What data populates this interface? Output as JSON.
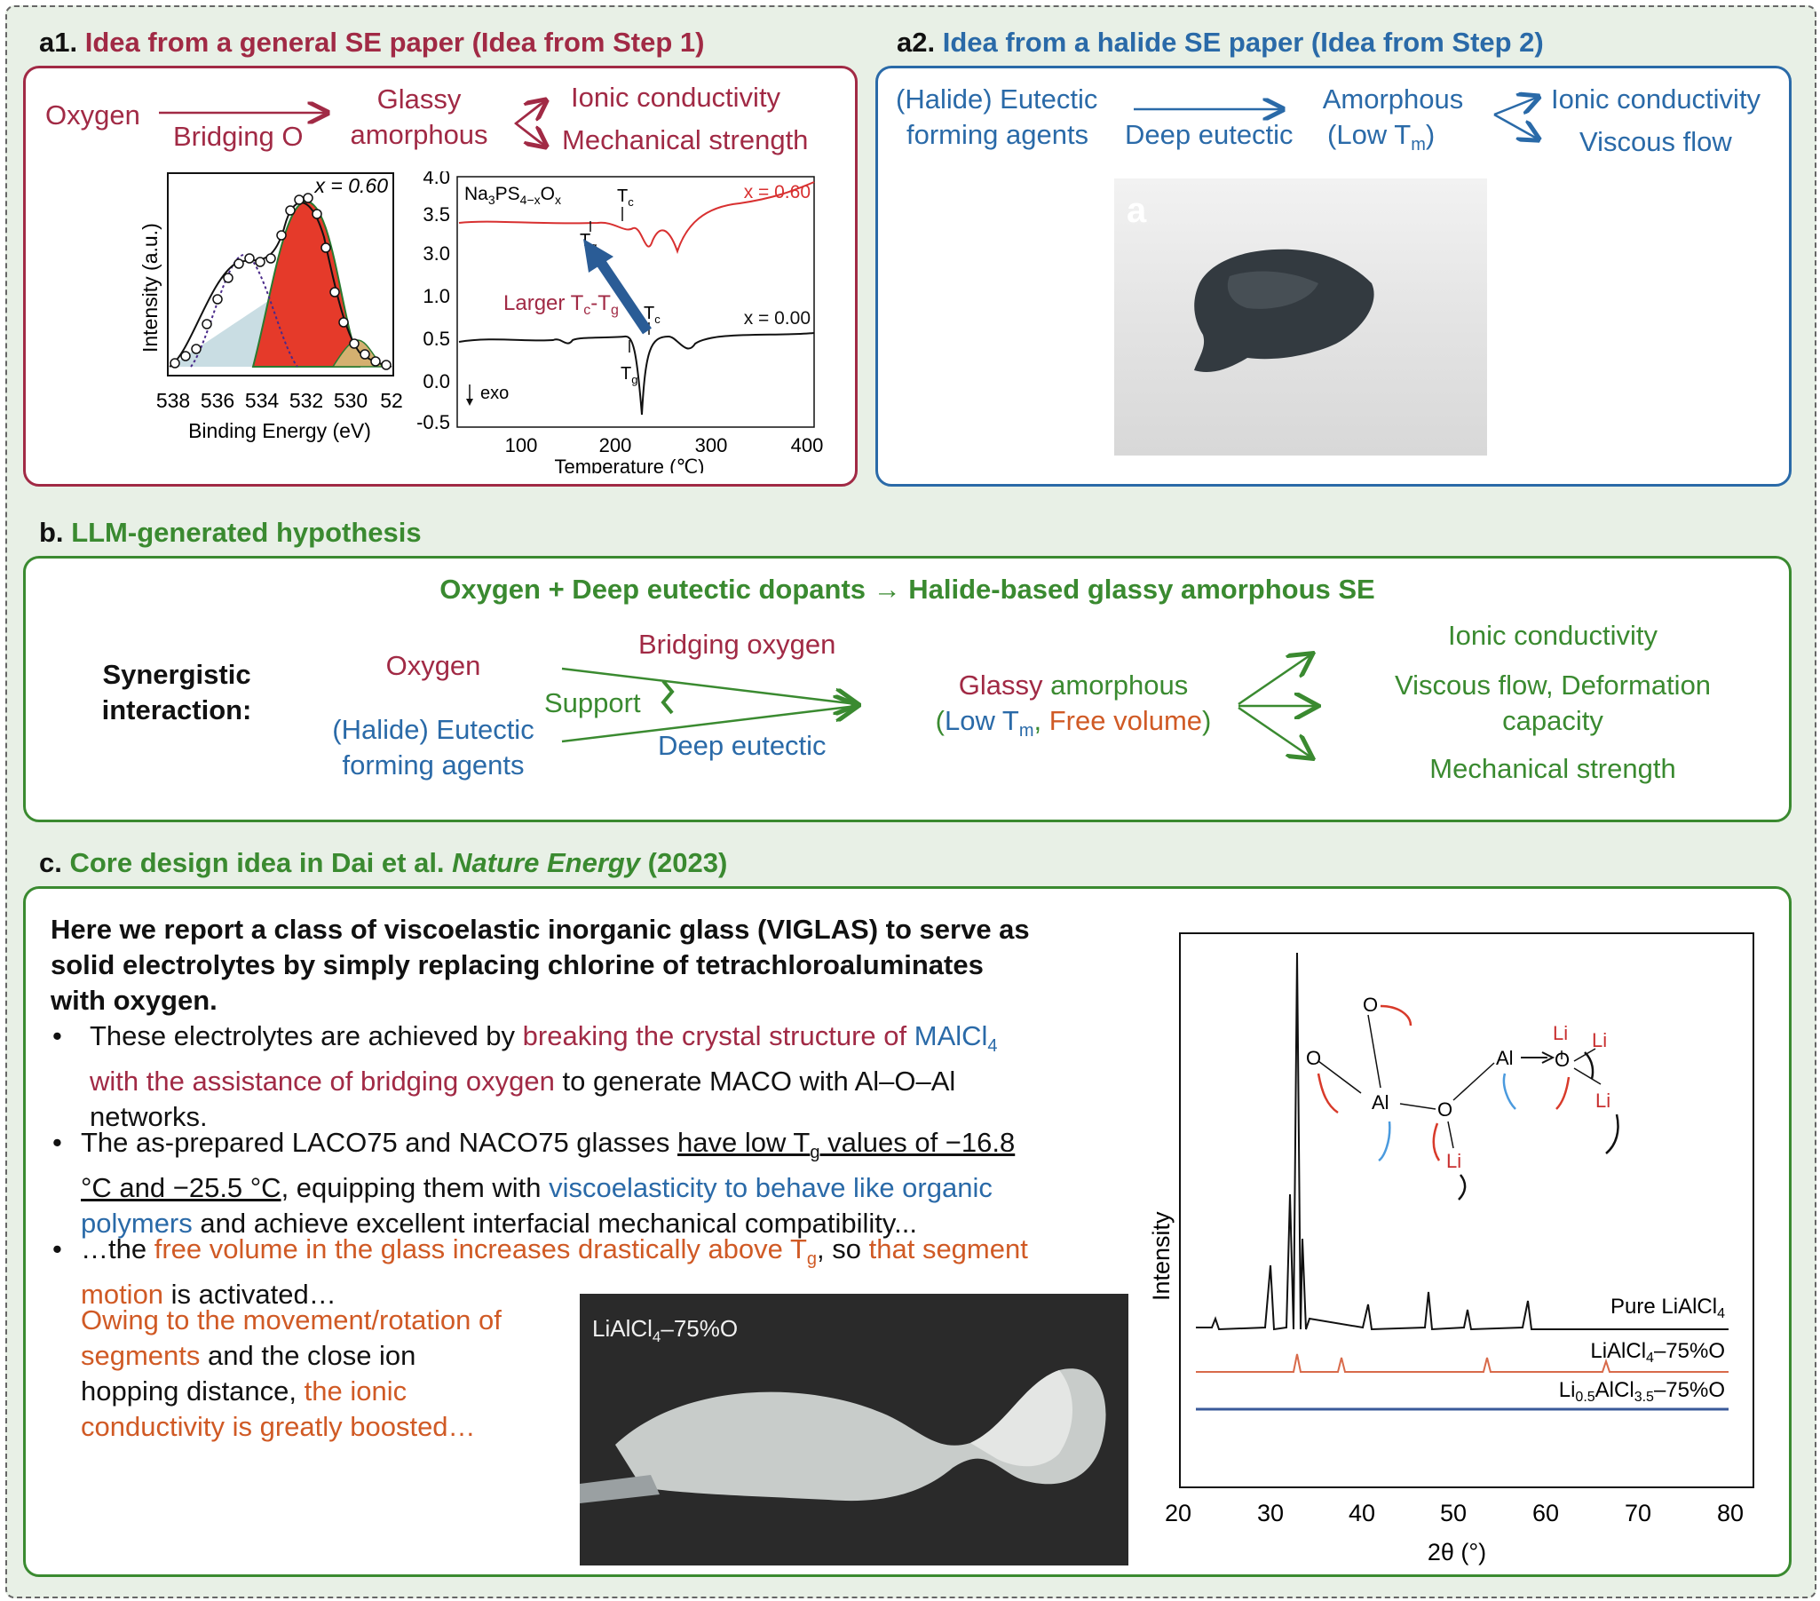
{
  "a1": {
    "label": "a1.",
    "title": "Idea from a general SE paper (Idea from Step 1)",
    "oxygen": "Oxygen",
    "bridging": "Bridging O",
    "glassy": "Glassy",
    "amorphous": "amorphous",
    "ionic": "Ionic conductivity",
    "mech": "Mechanical strength",
    "xps": {
      "xlabel": "Binding Energy (eV)",
      "ylabel": "Intensity (a.u.)",
      "x_note": "x = 0.60",
      "ticks": [
        "538",
        "536",
        "534",
        "532",
        "530",
        "52"
      ]
    },
    "dsc": {
      "compound": "Na3PS4−xOx",
      "xlabel": "Temperature (℃)",
      "yticks": [
        "4.0",
        "3.5",
        "3.0",
        "1.0",
        "0.5",
        "0.0",
        "-0.5"
      ],
      "xticks": [
        "100",
        "200",
        "300",
        "400"
      ],
      "x060": "x = 0.60",
      "x000": "x = 0.00",
      "exo": "exo",
      "tc": "T",
      "tc_sub": "c",
      "tg": "T",
      "tg_sub": "g",
      "larger": "Larger T",
      "larger_c": "c",
      "larger_mid": "-T",
      "larger_g": "g"
    }
  },
  "a2": {
    "label": "a2.",
    "title": "Idea from a halide SE paper (Idea from Step 2)",
    "eutectic1": "(Halide) Eutectic",
    "eutectic2": "forming agents",
    "deep": "Deep eutectic",
    "amorphous": "Amorphous",
    "lowtm": "(Low T",
    "lowtm_sub": "m",
    "lowtm_end": ")",
    "ionic": "Ionic conductivity",
    "viscous": "Viscous flow",
    "photo_letter": "a"
  },
  "b": {
    "label": "b.",
    "title": "LLM-generated hypothesis",
    "headline": "Oxygen + Deep eutectic dopants → Halide-based glassy amorphous SE",
    "synergistic1": "Synergistic",
    "synergistic2": "interaction:",
    "oxygen": "Oxygen",
    "eutectic1": "(Halide) Eutectic",
    "eutectic2": "forming agents",
    "bridging": "Bridging oxygen",
    "support": "Support",
    "deep": "Deep eutectic",
    "glassy": "Glassy",
    "amorphous": " amorphous",
    "open": "(",
    "low": "Low T",
    "low_sub": "m",
    "comma": ", ",
    "free": "Free volume",
    "close": ")",
    "ionic": "Ionic conductivity",
    "viscous1": "Viscous flow, Deformation",
    "viscous2": "capacity",
    "mech": "Mechanical strength"
  },
  "c": {
    "label": "c.",
    "title_pre": "Core design idea in Dai et al. ",
    "title_journal": "Nature Energy",
    "title_year": " (2023)",
    "lead1": "Here we report a class of viscoelastic inorganic glass (VIGLAS) to serve as",
    "lead2": "solid electrolytes by simply replacing chlorine of tetrachloroaluminates",
    "lead3": "with oxygen.",
    "b1_a": "These electrolytes are achieved by ",
    "b1_b": "breaking the crystal structure of ",
    "b1_c": "MAlCl",
    "b1_c_sub": "4",
    "b1_d": "with the assistance of bridging oxygen",
    "b1_e": " to generate MACO with Al–O–Al",
    "b1_f": "networks.",
    "b2_a": "The as-prepared LACO75 and NACO75 glasses ",
    "b2_b": "have low T",
    "b2_b_sub": "g",
    "b2_c": " values of −16.8",
    "b2_d": "°C and −25.5 °C",
    "b2_e": ", equipping them with ",
    "b2_f": "viscoelasticity to behave like organic",
    "b2_g": "polymers",
    "b2_h": " and achieve excellent interfacial mechanical compatibility...",
    "b3_a": "…the ",
    "b3_b": "free volume in the glass increases drastically above T",
    "b3_b_sub": "g",
    "b3_c": ", so ",
    "b3_d": "that segment",
    "b3_e": "motion",
    "b3_f": " is activated…",
    "p4_1": "Owing to the movement/rotation of",
    "p4_2a": "segments",
    "p4_2b": " and the close ion",
    "p4_3a": "hopping distance, ",
    "p4_3b": "the ionic",
    "p4_4": "conductivity is greatly boosted…",
    "photo_label": "LiAlCl",
    "photo_label_sub": "4",
    "photo_label_end": "–75%O",
    "xrd": {
      "ylabel": "Intensity",
      "xlabel": "2θ (°)",
      "xticks": [
        "20",
        "30",
        "40",
        "50",
        "60",
        "70",
        "80"
      ],
      "pure": "Pure LiAlCl",
      "pure_sub": "4",
      "s2": "LiAlCl",
      "s2_sub": "4",
      "s2_end": "–75%O",
      "s3": "Li",
      "s3_sub1": "0.5",
      "s3_mid": "AlCl",
      "s3_sub2": "3.5",
      "s3_end": "–75%O",
      "atoms": {
        "o": "O",
        "al": "Al",
        "li": "Li"
      }
    }
  }
}
